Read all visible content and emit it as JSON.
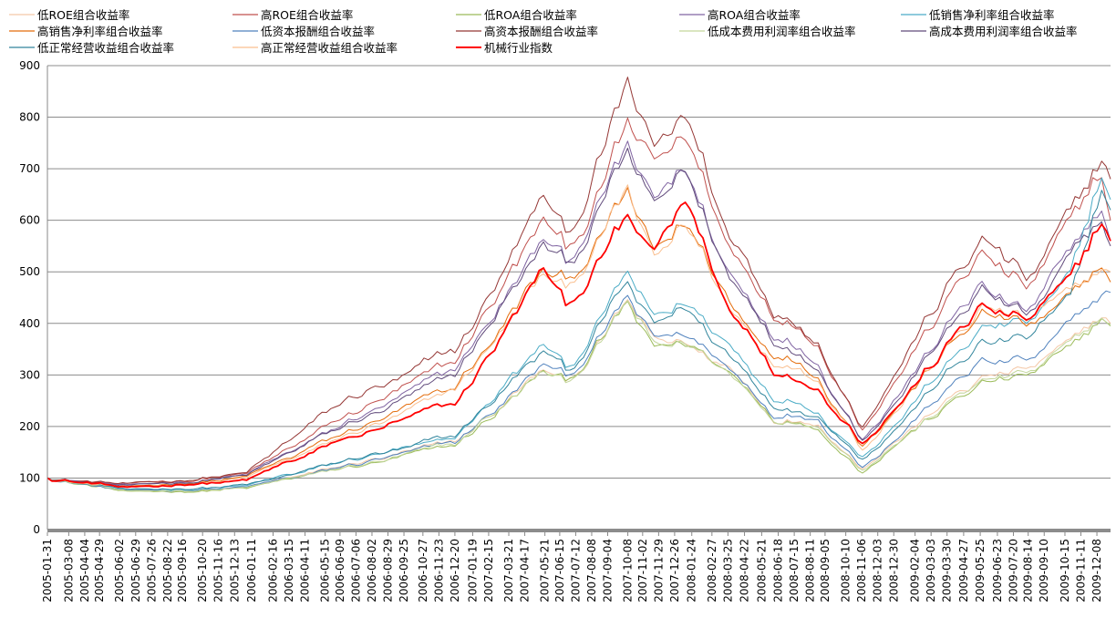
{
  "chart_data": {
    "type": "line",
    "title": "",
    "xlabel": "",
    "ylabel": "",
    "ylim": [
      0,
      900
    ],
    "yticks": [
      0,
      100,
      200,
      300,
      400,
      500,
      600,
      700,
      800,
      900
    ],
    "grid": "horizontal",
    "legend_position": "top",
    "x_tick_labels": [
      "2005-01-31",
      "2005-03-08",
      "2005-04-04",
      "2005-04-29",
      "2005-06-02",
      "2005-06-29",
      "2005-07-26",
      "2005-08-22",
      "2005-09-16",
      "2005-10-20",
      "2005-11-16",
      "2005-12-13",
      "2006-01-11",
      "2006-02-16",
      "2006-03-15",
      "2006-04-11",
      "2006-05-15",
      "2006-06-09",
      "2006-07-06",
      "2006-08-02",
      "2006-08-29",
      "2006-09-25",
      "2006-10-27",
      "2006-11-23",
      "2006-12-20",
      "2007-01-19",
      "2007-02-15",
      "2007-03-21",
      "2007-04-17",
      "2007-05-21",
      "2007-06-15",
      "2007-07-12",
      "2007-08-08",
      "2007-09-04",
      "2007-10-08",
      "2007-11-02",
      "2007-11-29",
      "2007-12-26",
      "2008-01-24",
      "2008-02-27",
      "2008-03-25",
      "2008-04-22",
      "2008-05-21",
      "2008-06-18",
      "2008-07-15",
      "2008-08-11",
      "2008-09-05",
      "2008-10-10",
      "2008-11-06",
      "2008-12-03",
      "2008-12-30",
      "2009-02-04",
      "2009-03-03",
      "2009-03-30",
      "2009-04-27",
      "2009-05-25",
      "2009-06-23",
      "2009-07-20",
      "2009-08-14",
      "2009-09-10",
      "2009-10-15",
      "2009-11-11",
      "2009-12-08"
    ],
    "x_keys": [
      "2005-01-31",
      "2005-07-01",
      "2006-01-01",
      "2006-06-09",
      "2006-12-20",
      "2007-05-21",
      "2007-06-29",
      "2007-10-08",
      "2007-11-20",
      "2008-01-14",
      "2008-03-25",
      "2008-06-18",
      "2008-08-20",
      "2008-11-06",
      "2009-01-20",
      "2009-05-25",
      "2009-08-14",
      "2009-10-25",
      "2009-12-15",
      "2009-12-31"
    ],
    "series": [
      {
        "name": "低ROE组合收益率",
        "color": "#f4c7a6",
        "values": [
          100,
          72,
          82,
          120,
          165,
          312,
          285,
          440,
          360,
          365,
          315,
          218,
          218,
          120,
          190,
          290,
          305,
          350,
          410,
          400
        ]
      },
      {
        "name": "高ROE组合收益率",
        "color": "#c0504d",
        "values": [
          100,
          85,
          108,
          210,
          320,
          600,
          535,
          790,
          690,
          760,
          550,
          415,
          375,
          200,
          330,
          540,
          470,
          580,
          690,
          600
        ]
      },
      {
        "name": "低ROA组合收益率",
        "color": "#9bbb59",
        "values": [
          100,
          70,
          80,
          115,
          160,
          305,
          280,
          430,
          345,
          355,
          305,
          210,
          210,
          115,
          185,
          285,
          300,
          345,
          405,
          395
        ]
      },
      {
        "name": "高ROA组合收益率",
        "color": "#8064a2",
        "values": [
          100,
          83,
          105,
          200,
          300,
          560,
          505,
          730,
          630,
          700,
          500,
          380,
          345,
          180,
          290,
          480,
          420,
          525,
          620,
          560
        ]
      },
      {
        "name": "低销售净利率组合收益率",
        "color": "#4bacc6",
        "values": [
          100,
          73,
          84,
          130,
          175,
          360,
          305,
          490,
          400,
          440,
          355,
          255,
          245,
          145,
          230,
          390,
          400,
          480,
          690,
          640
        ]
      },
      {
        "name": "高销售净利率组合收益率",
        "color": "#e46c0a",
        "values": [
          100,
          80,
          101,
          180,
          270,
          500,
          470,
          650,
          520,
          590,
          440,
          340,
          315,
          165,
          265,
          420,
          390,
          440,
          510,
          480
        ]
      },
      {
        "name": "低资本报酬组合收益率",
        "color": "#4f81bd",
        "values": [
          100,
          72,
          82,
          118,
          165,
          320,
          290,
          440,
          365,
          380,
          320,
          225,
          225,
          125,
          200,
          330,
          320,
          390,
          450,
          460
        ]
      },
      {
        "name": "高资本报酬组合收益率",
        "color": "#953735",
        "values": [
          100,
          86,
          110,
          240,
          340,
          640,
          555,
          850,
          730,
          800,
          580,
          430,
          385,
          210,
          345,
          560,
          480,
          600,
          720,
          680
        ]
      },
      {
        "name": "低成本费用利润率组合收益率",
        "color": "#c3d69b",
        "values": [
          100,
          71,
          81,
          117,
          162,
          308,
          282,
          435,
          352,
          360,
          310,
          214,
          214,
          118,
          188,
          288,
          303,
          348,
          408,
          398
        ]
      },
      {
        "name": "高成本费用利润率组合收益率",
        "color": "#604a7b",
        "values": [
          100,
          82,
          104,
          195,
          295,
          550,
          500,
          720,
          610,
          690,
          490,
          370,
          335,
          175,
          285,
          470,
          410,
          515,
          610,
          550
        ]
      },
      {
        "name": "低正常经营收益组合收益率",
        "color": "#31859c",
        "values": [
          100,
          74,
          86,
          128,
          178,
          345,
          300,
          470,
          385,
          420,
          340,
          240,
          235,
          140,
          220,
          360,
          370,
          440,
          660,
          620
        ]
      },
      {
        "name": "高正常经营收益组合收益率",
        "color": "#fabf8f",
        "values": [
          100,
          79,
          100,
          175,
          265,
          490,
          460,
          645,
          515,
          585,
          435,
          330,
          310,
          160,
          260,
          430,
          400,
          450,
          500,
          500
        ]
      },
      {
        "name": "机械行业指数",
        "color": "#ff0000",
        "values": [
          100,
          80,
          95,
          170,
          240,
          505,
          430,
          600,
          520,
          640,
          440,
          315,
          290,
          175,
          270,
          430,
          400,
          470,
          590,
          560
        ]
      }
    ]
  }
}
